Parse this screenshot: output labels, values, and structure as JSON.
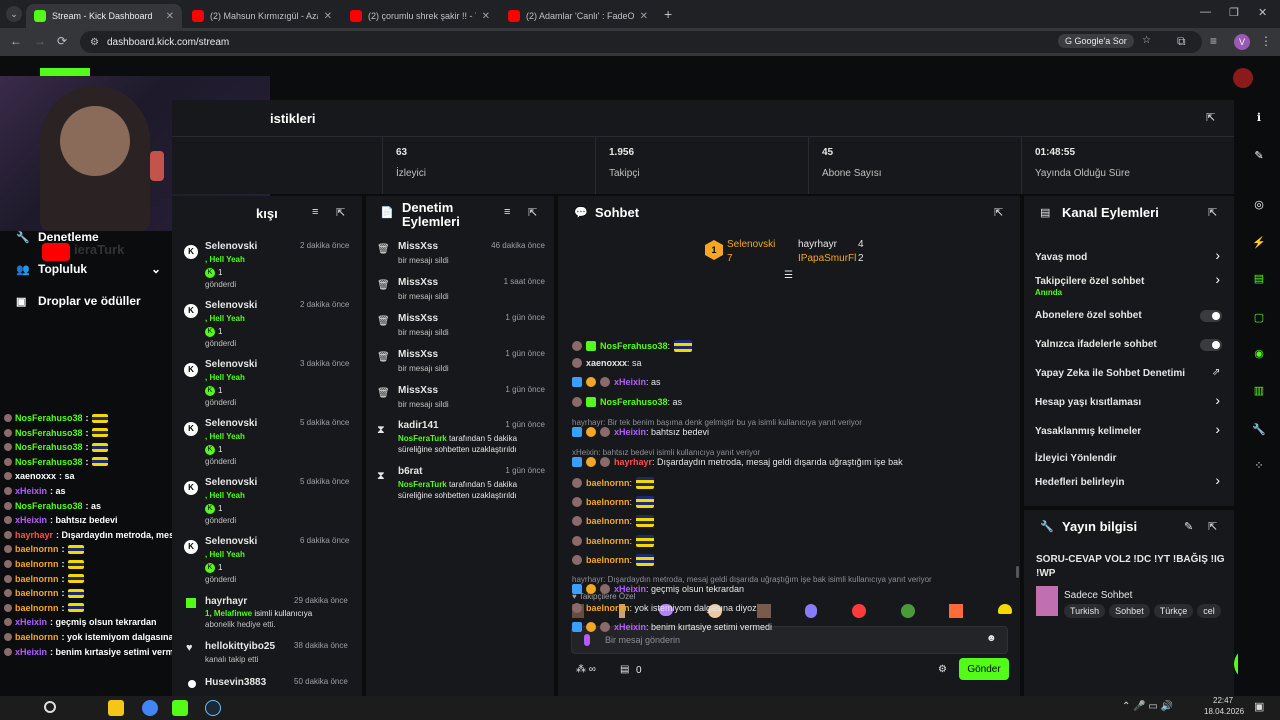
{
  "browser": {
    "tabs": [
      {
        "title": "Stream - Kick Dashboard",
        "color": "#53fc18"
      },
      {
        "title": "(2) Mahsun Kırmızıgül - Azar Az",
        "color": "#ff0000"
      },
      {
        "title": "(2) çorumlu shrek şakir !! - YouT",
        "color": "#ff0000"
      },
      {
        "title": "(2) Adamlar 'Canlı' : FadeOut Sh",
        "color": "#ff0000"
      }
    ],
    "url": "dashboard.kick.com/stream",
    "google_button": "Google'a Sor",
    "profile_initial": "V"
  },
  "stats": {
    "title_fragment": "istikleri",
    "items": [
      {
        "value": "63",
        "label": "İzleyici"
      },
      {
        "value": "1.956",
        "label": "Takipçi"
      },
      {
        "value": "45",
        "label": "Abone Sayısı"
      },
      {
        "value": "01:48:55",
        "label": "Yayında Olduğu Süre"
      }
    ]
  },
  "sidebar": {
    "items": [
      {
        "label": "S",
        "icon": "grid-icon"
      },
      {
        "label": "Denetleme",
        "icon": "wrench-icon"
      },
      {
        "label": "Topluluk",
        "icon": "people-icon"
      },
      {
        "label": "Droplar ve ödüller",
        "icon": "gift-icon"
      }
    ],
    "overlay_name": "ieraTurk"
  },
  "activity": {
    "title_fragment": "kışı",
    "rows": [
      {
        "user": "Selenovski",
        "time": "2 dakika önce",
        "msg": ", Hell Yeah",
        "count": "1",
        "sent": "gönderdi"
      },
      {
        "user": "Selenovski",
        "time": "2 dakika önce",
        "msg": ", Hell Yeah",
        "count": "1",
        "sent": "gönderdi"
      },
      {
        "user": "Selenovski",
        "time": "3 dakika önce",
        "msg": ", Hell Yeah",
        "count": "1",
        "sent": "gönderdi"
      },
      {
        "user": "Selenovski",
        "time": "5 dakika önce",
        "msg": ", Hell Yeah",
        "count": "1",
        "sent": "gönderdi"
      },
      {
        "user": "Selenovski",
        "time": "5 dakika önce",
        "msg": ", Hell Yeah",
        "count": "1",
        "sent": "gönderdi"
      },
      {
        "user": "Selenovski",
        "time": "6 dakika önce",
        "msg": ", Hell Yeah",
        "count": "1",
        "sent": "gönderdi"
      }
    ],
    "gift": {
      "user": "hayrhayr",
      "time": "29 dakika önce",
      "line1": "1, Melafinwe",
      "line1b": " isimli kullanıcıya",
      "line2": "abonelik hediye etti."
    },
    "follow": {
      "user": "hellokittyibo25",
      "time": "38 dakika önce",
      "line": "kanalı takip etti"
    },
    "last": {
      "user": "Husevin3883",
      "time": "50 dakika önce"
    }
  },
  "moderation": {
    "title_line1": "Denetim",
    "title_line2": "Eylemleri",
    "rows": [
      {
        "user": "MissXss",
        "time": "46 dakika önce",
        "msg": "bir mesajı sildi"
      },
      {
        "user": "MissXss",
        "time": "1 saat önce",
        "msg": "bir mesajı sildi"
      },
      {
        "user": "MissXss",
        "time": "1 gün önce",
        "msg": "bir mesajı sildi"
      },
      {
        "user": "MissXss",
        "time": "1 gün önce",
        "msg": "bir mesajı sildi"
      },
      {
        "user": "MissXss",
        "time": "1 gün önce",
        "msg": "bir mesajı sildi"
      }
    ],
    "timeouts": [
      {
        "user": "kadir141",
        "time": "1 gün önce",
        "by": "NosFeraTurk",
        "msg1": " tarafından 5 dakika",
        "msg2": "süreliğine sohbetten uzaklaştırıldı"
      },
      {
        "user": "b6rat",
        "time": "1 gün önce",
        "by": "NosFeraTurk",
        "msg1": " tarafından 5 dakika",
        "msg2": "süreliğine sohbetten uzaklaştırıldı"
      }
    ]
  },
  "chat": {
    "title": "Sohbet",
    "leaderboard": {
      "first": {
        "name": "Selenovski",
        "count": "7",
        "rank": "1"
      },
      "second": {
        "name": "hayrhayr",
        "count": "4"
      },
      "third": {
        "name": "IPapaSmurFl",
        "count": "2"
      }
    },
    "messages": [
      {
        "user": "NosFerahuso38",
        "color": "#53fc18",
        "text": ":",
        "emote": true
      },
      {
        "user": "xaenoxxx",
        "color": "#e6e6e6",
        "text": ": sa",
        "emote": false
      },
      {
        "user": "xHeixin",
        "color": "#b45cff",
        "text": ": as",
        "emote": false
      },
      {
        "user": "NosFerahuso38",
        "color": "#53fc18",
        "text": ": as",
        "emote": false
      },
      {
        "reply": "hayrhayr: Bir tek benim başıma denk gelmiştir bu ya isimli kullanıcıya yanıt veriyor"
      },
      {
        "user": "xHeixin",
        "color": "#b45cff",
        "text": ": bahtsız bedevi",
        "emote": false
      },
      {
        "reply": "xHeixin: bahtsız bedevi isimli kullanıcıya yanıt veriyor"
      },
      {
        "user": "hayrhayr",
        "color": "#ff4d4d",
        "text": ": Dışardaydın metroda, mesaj geldi dışarıda uğraştığım işe bak",
        "emote": false
      },
      {
        "user": "baelnornn",
        "color": "#f5a623",
        "text": ":",
        "emote": true
      },
      {
        "user": "baelnornn",
        "color": "#f5a623",
        "text": ":",
        "emote": true
      },
      {
        "user": "baelnornn",
        "color": "#f5a623",
        "text": ":",
        "emote": true
      },
      {
        "user": "baelnornn",
        "color": "#f5a623",
        "text": ":",
        "emote": true
      },
      {
        "user": "baelnornn",
        "color": "#f5a623",
        "text": ":",
        "emote": true
      },
      {
        "reply": "hayrhayr: Dışardaydın metroda, mesaj geldi dışarıda uğraştığım işe bak isimli kullanıcıya yanıt veriyor"
      },
      {
        "user": "xHeixin",
        "color": "#b45cff",
        "text": ": geçmiş olsun tekrardan",
        "emote": false
      },
      {
        "user": "baelnornn",
        "color": "#f5a623",
        "text": ": yok istemiyom dalgasına diyoz",
        "emote": false
      },
      {
        "user": "xHeixin",
        "color": "#b45cff",
        "text": ": benim kırtasiye setimi vermedi",
        "emote": false
      }
    ],
    "emote_tray_label": "Takipçilere Özel",
    "input_placeholder": "Bir mesaj gönderin",
    "points": "∞",
    "count": "0",
    "send": "Gönder"
  },
  "channel_actions": {
    "title": "Kanal Eylemleri",
    "items": [
      {
        "label": "Yavaş mod",
        "kind": "chevron"
      },
      {
        "label": "Takipçilere özel sohbet",
        "sub": "Anında",
        "kind": "chevron"
      },
      {
        "label": "Abonelere özel sohbet",
        "kind": "toggle"
      },
      {
        "label": "Yalnızca ifadelerle sohbet",
        "kind": "toggle"
      },
      {
        "label": "Yapay Zeka ile Sohbet Denetimi",
        "kind": "external"
      },
      {
        "label": "Hesap yaşı kısıtlaması",
        "kind": "chevron"
      },
      {
        "label": "Yasaklanmış kelimeler",
        "kind": "chevron"
      },
      {
        "label": "İzleyici Yönlendir",
        "kind": "none"
      },
      {
        "label": "Hedefleri belirleyin",
        "kind": "chevron"
      }
    ]
  },
  "stream_info": {
    "title": "Yayın bilgisi",
    "stream_title_1": "SORU-CEVAP VOL2 !DC !YT !BAĞIŞ !IG",
    "stream_title_2": "!WP",
    "category": "Sadece Sohbet",
    "tags": [
      "Turkish",
      "Sohbet",
      "Türkçe",
      "cel"
    ]
  },
  "overlay_chat": [
    {
      "user": "NosFerahuso38",
      "text": ":",
      "color": "#53fc18",
      "emote": true
    },
    {
      "user": "NosFerahuso38",
      "text": ":",
      "color": "#53fc18",
      "emote": true
    },
    {
      "user": "NosFerahuso38",
      "text": ":",
      "color": "#53fc18",
      "emote": true
    },
    {
      "user": "NosFerahuso38",
      "text": ":",
      "color": "#53fc18",
      "emote": true
    },
    {
      "user": "xaenoxxx",
      "text": ": sa",
      "color": "#ffffff",
      "emote": false
    },
    {
      "user": "xHeixin",
      "text": ": as",
      "color": "#b45cff",
      "emote": false
    },
    {
      "user": "NosFerahuso38",
      "text": ": as",
      "color": "#53fc18",
      "emote": false
    },
    {
      "user": "xHeixin",
      "text": ": bahtsız bedevi",
      "color": "#b45cff",
      "emote": false
    },
    {
      "user": "hayrhayr",
      "text": ": Dışardaydın metroda, mesaj geldi dışarıda uğraştığım işe bak",
      "color": "#ff4d4d",
      "emote": false
    },
    {
      "user": "baelnornn",
      "text": ":",
      "color": "#f5a623",
      "emote": true
    },
    {
      "user": "baelnornn",
      "text": ":",
      "color": "#f5a623",
      "emote": true
    },
    {
      "user": "baelnornn",
      "text": ":",
      "color": "#f5a623",
      "emote": true
    },
    {
      "user": "baelnornn",
      "text": ":",
      "color": "#f5a623",
      "emote": true
    },
    {
      "user": "baelnornn",
      "text": ":",
      "color": "#f5a623",
      "emote": true
    },
    {
      "user": "xHeixin",
      "text": ": geçmiş olsun tekrardan",
      "color": "#b45cff",
      "emote": false
    },
    {
      "user": "baelnornn",
      "text": ": yok istemiyom dalgasına diyoz",
      "color": "#f5a623",
      "emote": false
    },
    {
      "user": "xHeixin",
      "text": ": benim kırtasiye setimi vermedi",
      "color": "#b45cff",
      "emote": false
    }
  ],
  "taskbar": {
    "time": "22:47",
    "date": "18.04.2026"
  },
  "colors": {
    "accent": "#53fc18",
    "panel": "#17181b",
    "bg": "#0b0c0e"
  }
}
